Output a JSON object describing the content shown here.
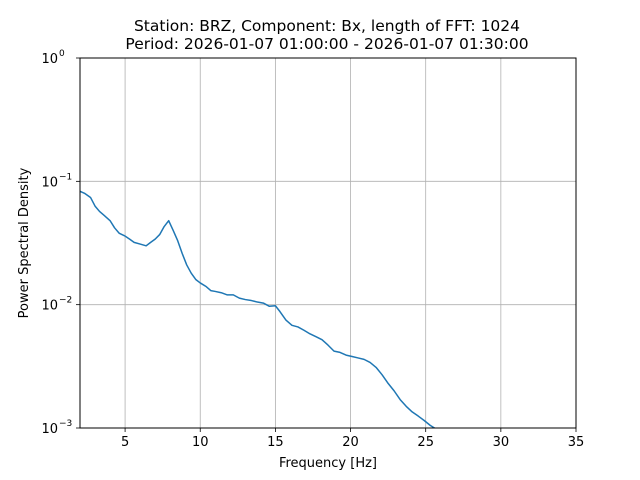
{
  "chart_data": {
    "type": "line",
    "title": "Station: BRZ, Component: Bx, length of FFT: 1024",
    "subtitle": "Period: 2026-01-07 01:00:00 - 2026-01-07 01:30:00",
    "xlabel": "Frequency [Hz]",
    "ylabel": "Power Spectral Density",
    "xlim": [
      2,
      35
    ],
    "ylim": [
      0.001,
      1
    ],
    "yscale": "log",
    "grid": true,
    "x_ticks": [
      {
        "value": 5,
        "label": "5"
      },
      {
        "value": 10,
        "label": "10"
      },
      {
        "value": 15,
        "label": "15"
      },
      {
        "value": 20,
        "label": "20"
      },
      {
        "value": 25,
        "label": "25"
      },
      {
        "value": 30,
        "label": "30"
      },
      {
        "value": 35,
        "label": "35"
      }
    ],
    "y_ticks": [
      {
        "value": 0.001,
        "base": "10",
        "exp": "−3"
      },
      {
        "value": 0.01,
        "base": "10",
        "exp": "−2"
      },
      {
        "value": 0.1,
        "base": "10",
        "exp": "−1"
      },
      {
        "value": 1,
        "base": "10",
        "exp": "0"
      }
    ],
    "series": [
      {
        "color": "#1f77b4",
        "x": [
          2.0,
          2.3,
          2.7,
          3.0,
          3.3,
          3.6,
          4.0,
          4.3,
          4.6,
          5.0,
          5.3,
          5.6,
          6.0,
          6.4,
          6.7,
          7.0,
          7.3,
          7.6,
          7.9,
          8.2,
          8.5,
          8.8,
          9.1,
          9.4,
          9.7,
          10.0,
          10.4,
          10.7,
          11.0,
          11.4,
          11.8,
          12.2,
          12.6,
          13.0,
          13.4,
          13.8,
          14.2,
          14.6,
          15.0,
          15.3,
          15.7,
          16.1,
          16.5,
          16.9,
          17.3,
          17.7,
          18.1,
          18.5,
          18.9,
          19.3,
          19.7,
          20.1,
          20.5,
          20.9,
          21.3,
          21.7,
          22.1,
          22.5,
          22.9,
          23.3,
          23.7,
          24.1,
          24.5,
          24.9,
          25.3,
          25.7
        ],
        "y": [
          0.083,
          0.08,
          0.074,
          0.063,
          0.057,
          0.053,
          0.048,
          0.042,
          0.038,
          0.036,
          0.034,
          0.032,
          0.031,
          0.03,
          0.032,
          0.034,
          0.037,
          0.043,
          0.048,
          0.04,
          0.033,
          0.026,
          0.021,
          0.018,
          0.016,
          0.015,
          0.014,
          0.013,
          0.0128,
          0.0125,
          0.012,
          0.012,
          0.0113,
          0.011,
          0.0108,
          0.0105,
          0.0103,
          0.0097,
          0.0098,
          0.0088,
          0.0075,
          0.0068,
          0.0066,
          0.0062,
          0.0058,
          0.0055,
          0.0052,
          0.0047,
          0.0042,
          0.0041,
          0.0039,
          0.0038,
          0.0037,
          0.0036,
          0.0034,
          0.0031,
          0.0027,
          0.0023,
          0.002,
          0.0017,
          0.0015,
          0.00135,
          0.00125,
          0.00115,
          0.00105,
          0.00098
        ]
      }
    ]
  }
}
